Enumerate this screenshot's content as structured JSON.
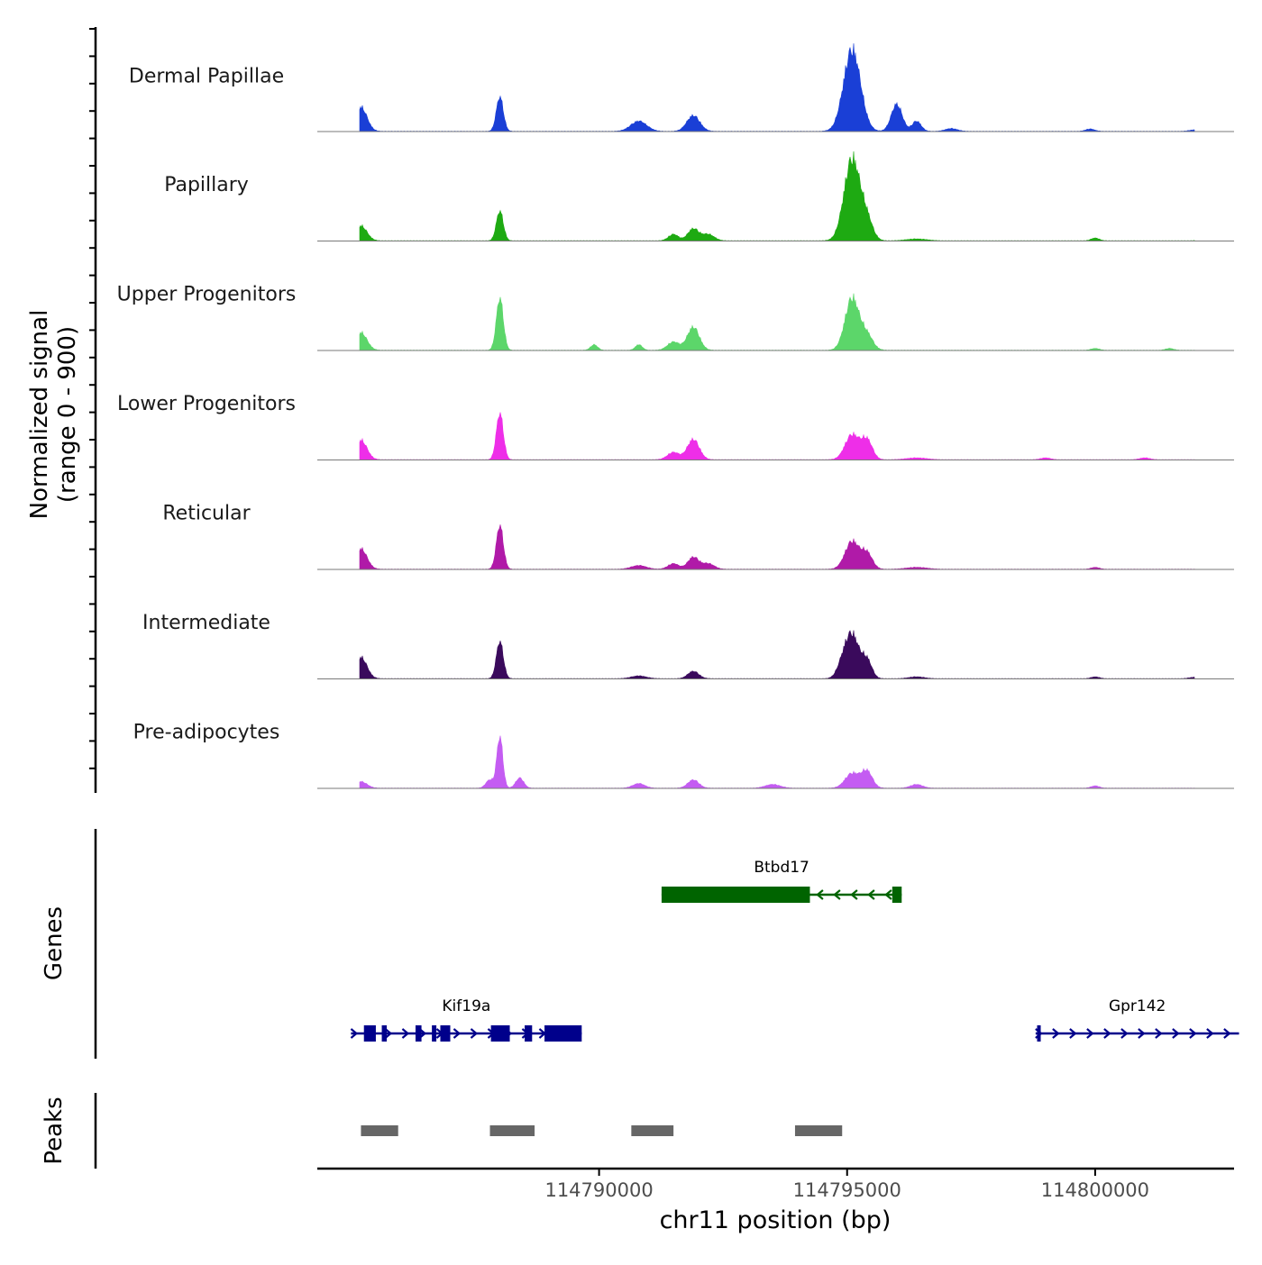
{
  "chart_data": {
    "type": "area",
    "chromosome": "chr11",
    "x_range": [
      114784320,
      114802800
    ],
    "xlabel": "chr11 position (bp)",
    "x_ticks": [
      114790000,
      114795000,
      114800000
    ],
    "x_tick_labels": [
      "114790000",
      "114795000",
      "114800000"
    ],
    "signal_panel": {
      "ylabel_line1": "Normalized signal",
      "ylabel_line2": "(range 0 - 900)",
      "ylim": [
        0,
        900
      ]
    },
    "tracks": [
      {
        "name": "Dermal Papillae",
        "color": "#1a3fd6",
        "peaks": [
          [
            114785200,
            260,
            120
          ],
          [
            114788000,
            370,
            70
          ],
          [
            114790800,
            110,
            160
          ],
          [
            114791900,
            170,
            130
          ],
          [
            114795100,
            880,
            170
          ],
          [
            114796000,
            290,
            110
          ],
          [
            114796400,
            110,
            90
          ],
          [
            114797100,
            30,
            120
          ],
          [
            114799900,
            25,
            90
          ],
          [
            114802000,
            15,
            100
          ]
        ]
      },
      {
        "name": "Papillary",
        "color": "#1eaa12",
        "peaks": [
          [
            114785200,
            160,
            120
          ],
          [
            114788000,
            320,
            70
          ],
          [
            114791500,
            70,
            100
          ],
          [
            114791900,
            130,
            110
          ],
          [
            114792200,
            70,
            120
          ],
          [
            114795100,
            880,
            160
          ],
          [
            114795400,
            200,
            120
          ],
          [
            114796400,
            20,
            200
          ],
          [
            114800000,
            30,
            80
          ],
          [
            114802200,
            15,
            100
          ]
        ]
      },
      {
        "name": "Upper Progenitors",
        "color": "#5cd66a",
        "peaks": [
          [
            114785200,
            190,
            120
          ],
          [
            114788000,
            560,
            70
          ],
          [
            114789900,
            60,
            70
          ],
          [
            114790800,
            60,
            70
          ],
          [
            114791500,
            90,
            120
          ],
          [
            114791900,
            250,
            120
          ],
          [
            114795100,
            560,
            140
          ],
          [
            114795400,
            160,
            120
          ],
          [
            114800000,
            20,
            80
          ],
          [
            114801500,
            20,
            80
          ]
        ]
      },
      {
        "name": "Lower Progenitors",
        "color": "#ee2ee8",
        "peaks": [
          [
            114785200,
            210,
            120
          ],
          [
            114788000,
            500,
            70
          ],
          [
            114791500,
            80,
            120
          ],
          [
            114791900,
            220,
            120
          ],
          [
            114795100,
            270,
            140
          ],
          [
            114795400,
            210,
            110
          ],
          [
            114796400,
            20,
            200
          ],
          [
            114799000,
            20,
            100
          ],
          [
            114801000,
            20,
            100
          ]
        ]
      },
      {
        "name": "Reticular",
        "color": "#b01aa8",
        "peaks": [
          [
            114785200,
            220,
            120
          ],
          [
            114788000,
            470,
            70
          ],
          [
            114790800,
            40,
            150
          ],
          [
            114791500,
            60,
            110
          ],
          [
            114791900,
            130,
            110
          ],
          [
            114792200,
            60,
            120
          ],
          [
            114795100,
            300,
            140
          ],
          [
            114795400,
            170,
            110
          ],
          [
            114796400,
            20,
            200
          ],
          [
            114800000,
            20,
            80
          ]
        ]
      },
      {
        "name": "Intermediate",
        "color": "#3a0a5c",
        "peaks": [
          [
            114785200,
            230,
            120
          ],
          [
            114788000,
            400,
            70
          ],
          [
            114790800,
            30,
            150
          ],
          [
            114791900,
            80,
            110
          ],
          [
            114794900,
            110,
            110
          ],
          [
            114795100,
            470,
            140
          ],
          [
            114795400,
            190,
            100
          ],
          [
            114796400,
            20,
            150
          ],
          [
            114800000,
            20,
            80
          ],
          [
            114802000,
            15,
            100
          ]
        ]
      },
      {
        "name": "Pre-adipocytes",
        "color": "#c45cf2",
        "peaks": [
          [
            114785200,
            70,
            120
          ],
          [
            114787800,
            90,
            80
          ],
          [
            114788000,
            550,
            60
          ],
          [
            114788400,
            110,
            80
          ],
          [
            114790800,
            50,
            120
          ],
          [
            114791900,
            90,
            110
          ],
          [
            114793500,
            40,
            150
          ],
          [
            114795100,
            160,
            140
          ],
          [
            114795400,
            180,
            110
          ],
          [
            114796400,
            40,
            120
          ],
          [
            114800000,
            25,
            80
          ],
          [
            114802900,
            40,
            120
          ]
        ]
      }
    ],
    "genes_panel": {
      "ylabel": "Genes",
      "genes": [
        {
          "name": "Btbd17",
          "start": 114791260,
          "end": 114796100,
          "strand": "-",
          "color": "#006400",
          "row": 0,
          "exons": [
            [
              114791260,
              114794250
            ],
            [
              114795910,
              114796100
            ]
          ]
        },
        {
          "name": "Kif19a",
          "start": 114785000,
          "end": 114789650,
          "strand": "+",
          "color": "#00008b",
          "row": 1,
          "exons": [
            [
              114785260,
              114785500
            ],
            [
              114785620,
              114785720
            ],
            [
              114786300,
              114786420
            ],
            [
              114786630,
              114786720
            ],
            [
              114786800,
              114787000
            ],
            [
              114787820,
              114788200
            ],
            [
              114788500,
              114788650
            ],
            [
              114788900,
              114789650
            ]
          ]
        },
        {
          "name": "Gpr142",
          "start": 114798800,
          "end": 114802900,
          "strand": "+",
          "color": "#00008b",
          "row": 1,
          "exons": [
            [
              114798830,
              114798900
            ]
          ]
        }
      ]
    },
    "peaks_panel": {
      "ylabel": "Peaks",
      "regions": [
        [
          114785200,
          114785950
        ],
        [
          114787800,
          114788700
        ],
        [
          114790650,
          114791500
        ],
        [
          114793950,
          114794900
        ]
      ],
      "color": "#666666"
    }
  }
}
